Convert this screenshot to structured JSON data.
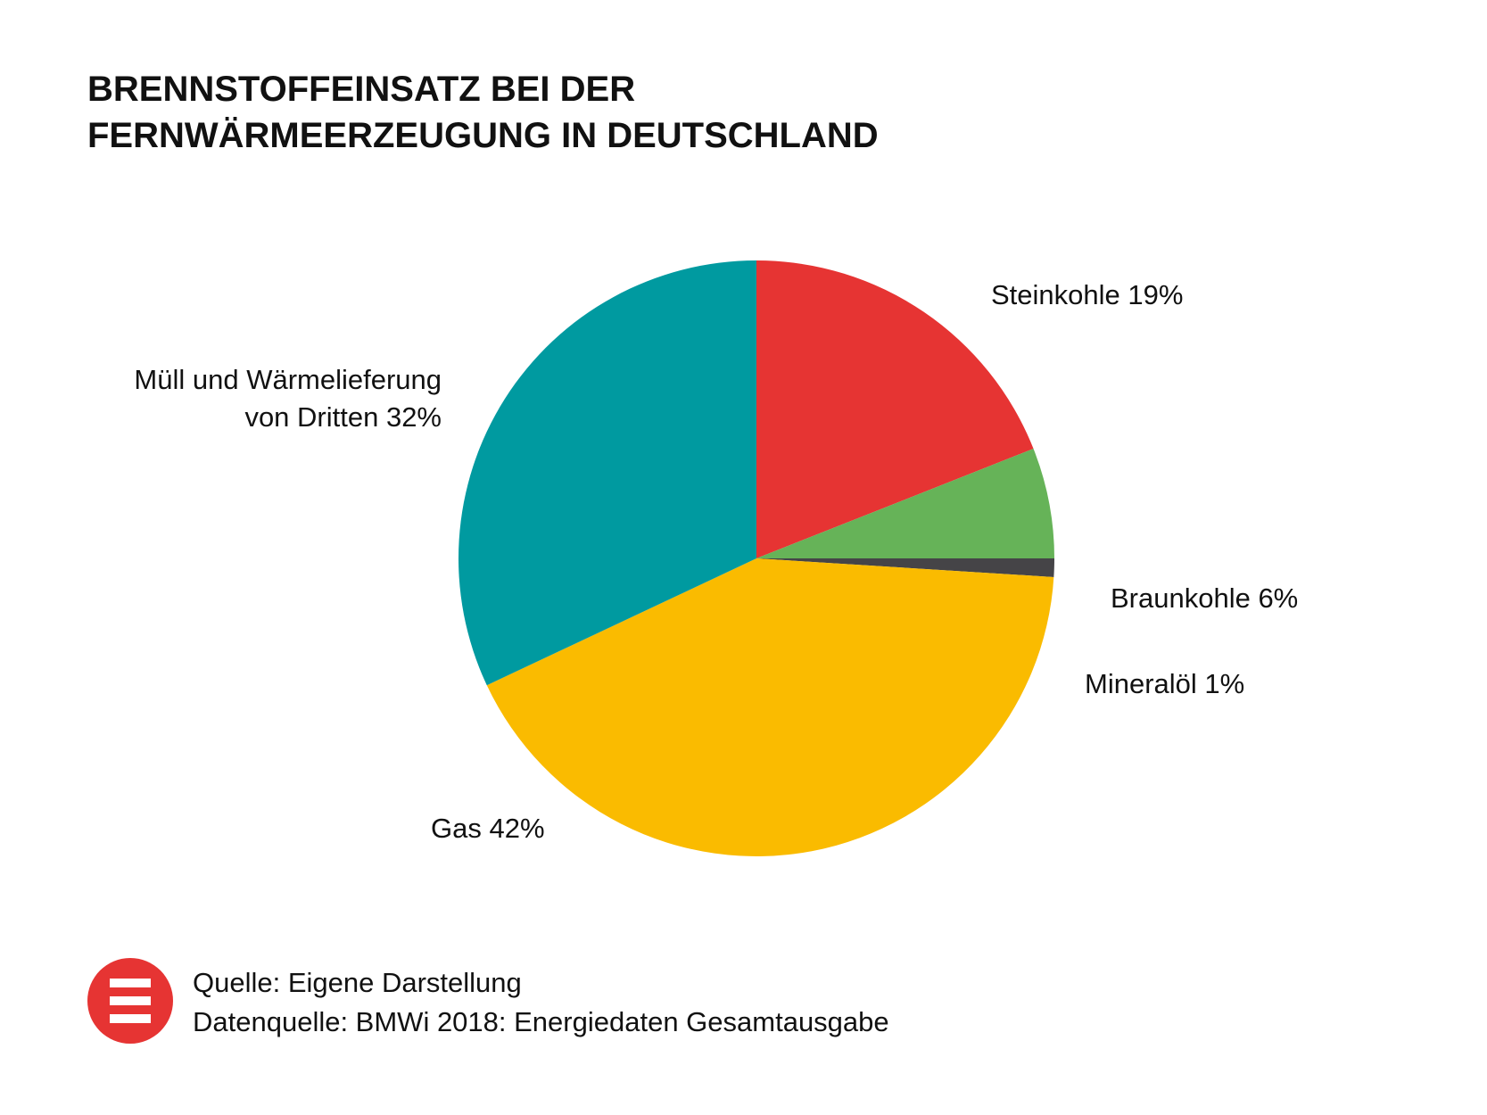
{
  "chart_data": {
    "type": "pie",
    "title": [
      "BRENNSTOFFEINSATZ BEI DER",
      "FERNWÄRMEERZEUGUNG IN DEUTSCHLAND"
    ],
    "slices": [
      {
        "label": "Steinkohle 19%",
        "name": "Steinkohle",
        "value": 19,
        "color": "#e63433"
      },
      {
        "label": "Braunkohle 6%",
        "name": "Braunkohle",
        "value": 6,
        "color": "#66b358"
      },
      {
        "label": "Mineralöl 1%",
        "name": "Mineralöl",
        "value": 1,
        "color": "#454447"
      },
      {
        "label": "Gas 42%",
        "name": "Gas",
        "value": 42,
        "color": "#fabb00"
      },
      {
        "label_lines": [
          "Müll und Wärmelieferung",
          "von Dritten 32%"
        ],
        "name": "Müll und Wärmelieferung von Dritten",
        "value": 32,
        "color": "#009aa0"
      }
    ]
  },
  "source": {
    "line1": "Quelle: Eigene Darstellung",
    "line2": "Datenquelle: BMWi 2018: Energiedaten Gesamtausgabe"
  },
  "logo_color": "#e63433"
}
